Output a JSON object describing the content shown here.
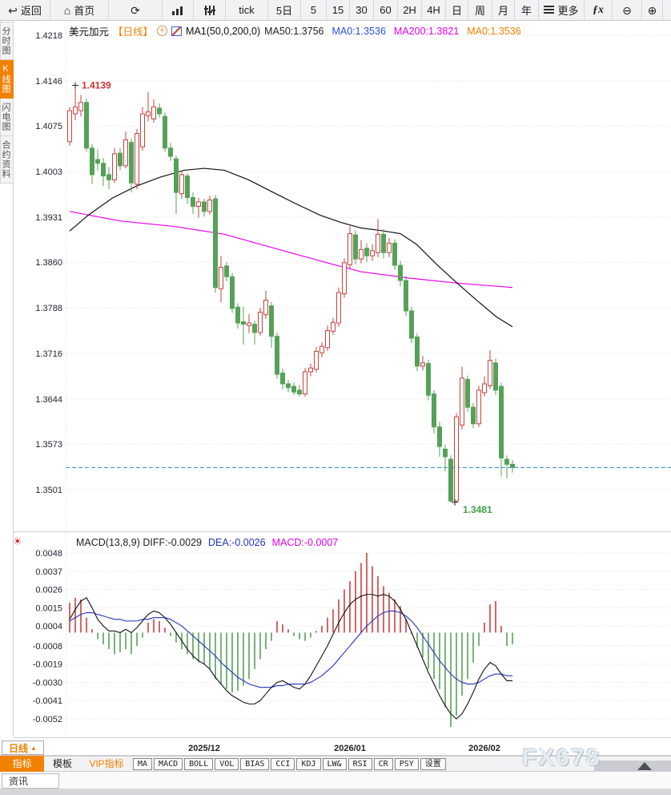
{
  "toolbar": {
    "items": [
      {
        "name": "back",
        "icon": "back-icon",
        "label": "返回"
      },
      {
        "name": "home",
        "icon": "home-icon",
        "label": "首页"
      },
      {
        "name": "refresh",
        "icon": "refresh-icon",
        "label": ""
      },
      {
        "name": "chart-type-bar",
        "icon": "bar-chart-icon",
        "label": ""
      },
      {
        "name": "chart-type-equalizer",
        "icon": "equalizer-icon",
        "label": ""
      },
      {
        "name": "interval-tick",
        "icon": "",
        "label": "tick"
      },
      {
        "name": "interval-5d",
        "icon": "",
        "label": "5日"
      },
      {
        "name": "interval-5",
        "icon": "",
        "label": "5"
      },
      {
        "name": "interval-15",
        "icon": "",
        "label": "15"
      },
      {
        "name": "interval-30",
        "icon": "",
        "label": "30"
      },
      {
        "name": "interval-60",
        "icon": "",
        "label": "60"
      },
      {
        "name": "interval-2h",
        "icon": "",
        "label": "2H"
      },
      {
        "name": "interval-4h",
        "icon": "",
        "label": "4H"
      },
      {
        "name": "interval-day",
        "icon": "",
        "label": "日"
      },
      {
        "name": "interval-week",
        "icon": "",
        "label": "周"
      },
      {
        "name": "interval-month",
        "icon": "",
        "label": "月"
      },
      {
        "name": "interval-year",
        "icon": "",
        "label": "年"
      },
      {
        "name": "more",
        "icon": "menu-icon",
        "label": "更多"
      },
      {
        "name": "formula",
        "icon": "fx-icon",
        "label": ""
      },
      {
        "name": "zoom-out",
        "icon": "zoom-out-icon",
        "label": ""
      },
      {
        "name": "zoom-in",
        "icon": "zoom-in-icon",
        "label": ""
      }
    ]
  },
  "sidebar": {
    "tabs": [
      {
        "label": "分时图",
        "active": false
      },
      {
        "label": "K线图",
        "active": true
      },
      {
        "label": "闪电图",
        "active": false
      },
      {
        "label": "合约资料",
        "active": false
      }
    ]
  },
  "chart_header": {
    "symbol": "美元加元",
    "period_tag": "【日线】",
    "ma_settings": "MA1(50,0,200,0)",
    "ma_values": [
      {
        "text": "MA50:1.3756",
        "color": "#222222"
      },
      {
        "text": "MA0:1.3536",
        "color": "#2b50d8"
      },
      {
        "text": "MA200:1.3821",
        "color": "#e800e8"
      },
      {
        "text": "MA0:1.3536",
        "color": "#f28100"
      }
    ]
  },
  "macd_header": {
    "items": [
      {
        "text": "MACD(13,8,9) DIFF:-0.0029",
        "color": "#222222"
      },
      {
        "text": "DEA:-0.0026",
        "color": "#2233bb"
      },
      {
        "text": "MACD:-0.0007",
        "color": "#e800e8"
      }
    ]
  },
  "period_selector": {
    "label": "日线",
    "arrow": "▲"
  },
  "indicator_bar": {
    "tabs": [
      {
        "label": "指标",
        "style": "active"
      },
      {
        "label": "模板",
        "style": "plain"
      },
      {
        "label": "VIP指标",
        "style": "vip"
      },
      {
        "label": "MA",
        "style": "box"
      },
      {
        "label": "MACD",
        "style": "box"
      },
      {
        "label": "BOLL",
        "style": "box"
      },
      {
        "label": "VOL",
        "style": "box"
      },
      {
        "label": "BIAS",
        "style": "box"
      },
      {
        "label": "CCI",
        "style": "box"
      },
      {
        "label": "KDJ",
        "style": "box"
      },
      {
        "label": "LW&",
        "style": "box"
      },
      {
        "label": "RSI",
        "style": "box"
      },
      {
        "label": "CR",
        "style": "box"
      },
      {
        "label": "PSY",
        "style": "box"
      },
      {
        "label": "设置",
        "style": "box"
      }
    ]
  },
  "news_bar": {
    "tab_label": "资讯"
  },
  "watermark": "FX678",
  "chart_data": {
    "type": "candlestick+macd",
    "symbol": "美元加元",
    "period": "日线",
    "price_axis": {
      "max": 1.4218,
      "min": 1.3501,
      "ticks": [
        1.4218,
        1.4146,
        1.4075,
        1.4003,
        1.3931,
        1.386,
        1.3788,
        1.3716,
        1.3644,
        1.3573,
        1.3501
      ]
    },
    "x_labels": [
      {
        "text": "2025/12",
        "index": 24
      },
      {
        "text": "2026/01",
        "index": 50
      },
      {
        "text": "2026/02",
        "index": 74
      }
    ],
    "current_price_line": 1.3536,
    "annotations": {
      "high": {
        "index": 1,
        "value": 1.4139,
        "label": "1.4139"
      },
      "low": {
        "index": 68,
        "value": 1.3481,
        "label": "1.3481"
      }
    },
    "candles": [
      [
        1.405,
        1.4105,
        1.4044,
        1.4099
      ],
      [
        1.4094,
        1.4139,
        1.4084,
        1.4105
      ],
      [
        1.4099,
        1.4124,
        1.409,
        1.4112
      ],
      [
        1.4112,
        1.4118,
        1.4034,
        1.404
      ],
      [
        1.404,
        1.4046,
        1.3983,
        1.3998
      ],
      [
        1.4022,
        1.4038,
        1.4005,
        1.4016
      ],
      [
        1.4016,
        1.4024,
        1.398,
        1.3996
      ],
      [
        1.3998,
        1.401,
        1.3975,
        1.399
      ],
      [
        1.399,
        1.404,
        1.3985,
        1.4031
      ],
      [
        1.4032,
        1.404,
        1.4005,
        1.4012
      ],
      [
        1.4012,
        1.4066,
        1.4008,
        1.4053
      ],
      [
        1.4049,
        1.4055,
        1.397,
        1.3985
      ],
      [
        1.3983,
        1.407,
        1.3975,
        1.4063
      ],
      [
        1.4042,
        1.4105,
        1.4036,
        1.4094
      ],
      [
        1.4091,
        1.4128,
        1.4082,
        1.4097
      ],
      [
        1.4086,
        1.4117,
        1.408,
        1.4105
      ],
      [
        1.4103,
        1.411,
        1.4088,
        1.4094
      ],
      [
        1.409,
        1.4096,
        1.4034,
        1.404
      ],
      [
        1.404,
        1.4048,
        1.402,
        1.4027
      ],
      [
        1.4023,
        1.4028,
        1.3936,
        1.397
      ],
      [
        1.3968,
        1.4005,
        1.396,
        1.3998
      ],
      [
        1.3996,
        1.4,
        1.3952,
        1.3962
      ],
      [
        1.3962,
        1.397,
        1.3936,
        1.3948
      ],
      [
        1.3948,
        1.3962,
        1.393,
        1.3955
      ],
      [
        1.3955,
        1.396,
        1.3932,
        1.394
      ],
      [
        1.394,
        1.3965,
        1.3935,
        1.3958
      ],
      [
        1.396,
        1.3966,
        1.3812,
        1.382
      ],
      [
        1.3818,
        1.387,
        1.3797,
        1.3852
      ],
      [
        1.3854,
        1.386,
        1.383,
        1.3837
      ],
      [
        1.3837,
        1.3843,
        1.378,
        1.3787
      ],
      [
        1.3789,
        1.3795,
        1.3755,
        1.3764
      ],
      [
        1.3766,
        1.379,
        1.373,
        1.3762
      ],
      [
        1.376,
        1.3778,
        1.3748,
        1.3764
      ],
      [
        1.3762,
        1.3768,
        1.373,
        1.3749
      ],
      [
        1.3749,
        1.3788,
        1.3744,
        1.3781
      ],
      [
        1.3777,
        1.3815,
        1.377,
        1.38
      ],
      [
        1.3791,
        1.3797,
        1.3725,
        1.3743
      ],
      [
        1.3743,
        1.3749,
        1.3676,
        1.3683
      ],
      [
        1.3685,
        1.3692,
        1.366,
        1.3668
      ],
      [
        1.3668,
        1.3674,
        1.3655,
        1.3662
      ],
      [
        1.3664,
        1.367,
        1.365,
        1.3655
      ],
      [
        1.3658,
        1.3666,
        1.3648,
        1.3652
      ],
      [
        1.3652,
        1.3693,
        1.3648,
        1.3687
      ],
      [
        1.3687,
        1.37,
        1.368,
        1.3693
      ],
      [
        1.3691,
        1.3726,
        1.3686,
        1.3719
      ],
      [
        1.3717,
        1.3734,
        1.371,
        1.3727
      ],
      [
        1.3725,
        1.376,
        1.372,
        1.3752
      ],
      [
        1.3751,
        1.3772,
        1.3745,
        1.3765
      ],
      [
        1.3764,
        1.382,
        1.3758,
        1.3812
      ],
      [
        1.381,
        1.3866,
        1.3804,
        1.3859
      ],
      [
        1.3856,
        1.3917,
        1.385,
        1.3905
      ],
      [
        1.3903,
        1.391,
        1.3856,
        1.3865
      ],
      [
        1.3865,
        1.3895,
        1.3858,
        1.388
      ],
      [
        1.3882,
        1.389,
        1.386,
        1.387
      ],
      [
        1.387,
        1.3888,
        1.3862,
        1.3878
      ],
      [
        1.3875,
        1.3928,
        1.3868,
        1.3904
      ],
      [
        1.3904,
        1.3912,
        1.3866,
        1.3875
      ],
      [
        1.3875,
        1.3898,
        1.3868,
        1.389
      ],
      [
        1.389,
        1.3896,
        1.3848,
        1.3855
      ],
      [
        1.3855,
        1.3862,
        1.3822,
        1.3831
      ],
      [
        1.3831,
        1.3838,
        1.3775,
        1.3783
      ],
      [
        1.3783,
        1.379,
        1.3732,
        1.374
      ],
      [
        1.3742,
        1.3748,
        1.3688,
        1.3696
      ],
      [
        1.3696,
        1.3712,
        1.3689,
        1.3701
      ],
      [
        1.37,
        1.3706,
        1.3642,
        1.365
      ],
      [
        1.3652,
        1.3658,
        1.359,
        1.36
      ],
      [
        1.36,
        1.3608,
        1.3553,
        1.3569
      ],
      [
        1.3565,
        1.3572,
        1.353,
        1.3553
      ],
      [
        1.3549,
        1.3555,
        1.3481,
        1.3483
      ],
      [
        1.3483,
        1.3622,
        1.3481,
        1.3616
      ],
      [
        1.3603,
        1.3695,
        1.3596,
        1.3677
      ],
      [
        1.3675,
        1.3681,
        1.3624,
        1.3631
      ],
      [
        1.3631,
        1.3638,
        1.3598,
        1.3605
      ],
      [
        1.3605,
        1.3665,
        1.36,
        1.3658
      ],
      [
        1.3654,
        1.368,
        1.3648,
        1.3668
      ],
      [
        1.3665,
        1.3721,
        1.366,
        1.3705
      ],
      [
        1.3701,
        1.3708,
        1.365,
        1.3658
      ],
      [
        1.3664,
        1.367,
        1.3522,
        1.3551
      ],
      [
        1.3549,
        1.3555,
        1.3519,
        1.3541
      ],
      [
        1.3541,
        1.3548,
        1.3528,
        1.3536
      ]
    ],
    "ma50": {
      "points": [
        [
          0,
          1.3909
        ],
        [
          3.3,
          1.3934
        ],
        [
          7.6,
          1.3961
        ],
        [
          11.9,
          1.398
        ],
        [
          16.1,
          1.3994
        ],
        [
          20.4,
          1.4005
        ],
        [
          24,
          1.4008
        ],
        [
          27.6,
          1.4005
        ],
        [
          31.9,
          1.399
        ],
        [
          36.1,
          1.3971
        ],
        [
          40.4,
          1.3952
        ],
        [
          44.7,
          1.3934
        ],
        [
          48.3,
          1.3923
        ],
        [
          51.9,
          1.3914
        ],
        [
          55.4,
          1.391
        ],
        [
          59,
          1.3905
        ],
        [
          61.9,
          1.3888
        ],
        [
          65.4,
          1.3857
        ],
        [
          69,
          1.3828
        ],
        [
          72.6,
          1.38
        ],
        [
          76.1,
          1.3774
        ],
        [
          79,
          1.3758
        ]
      ]
    },
    "ma200": {
      "points": [
        [
          0,
          1.394
        ],
        [
          9,
          1.3925
        ],
        [
          19,
          1.3916
        ],
        [
          27.6,
          1.3904
        ],
        [
          36.1,
          1.3883
        ],
        [
          44.7,
          1.3862
        ],
        [
          51.9,
          1.3845
        ],
        [
          60.4,
          1.3835
        ],
        [
          69,
          1.3827
        ],
        [
          79,
          1.382
        ]
      ]
    },
    "macd": {
      "axis_max": 0.0048,
      "axis_min": -0.0052,
      "ticks": [
        0.0048,
        0.0037,
        0.0026,
        0.0015,
        0.0004,
        -0.0008,
        -0.0019,
        -0.003,
        -0.0041,
        -0.0052
      ],
      "histogram": [
        0.0018,
        0.0021,
        0.002,
        0.0009,
        0.0002,
        -0.0004,
        -0.0007,
        -0.001,
        -0.0013,
        -0.0012,
        -0.001,
        -0.0013,
        -0.0008,
        -0.0003,
        0.0006,
        0.0008,
        0.0007,
        0.0003,
        -0.0002,
        -0.0006,
        -0.001,
        -0.0013,
        -0.0016,
        -0.0018,
        -0.0019,
        -0.0022,
        -0.0028,
        -0.0031,
        -0.0034,
        -0.0036,
        -0.0035,
        -0.0032,
        -0.0028,
        -0.0022,
        -0.0016,
        -0.001,
        -0.0005,
        0.0007,
        0.0005,
        0.0002,
        -0.0002,
        -0.0004,
        -0.0005,
        -0.0003,
        0.0001,
        0.0004,
        0.0009,
        0.0014,
        0.002,
        0.0026,
        0.0031,
        0.0037,
        0.0042,
        0.0048,
        0.004,
        0.0034,
        0.0028,
        0.0024,
        0.002,
        0.0016,
        0.0008,
        -0.0001,
        -0.0009,
        -0.0015,
        -0.0022,
        -0.0028,
        -0.0034,
        -0.0045,
        -0.0057,
        -0.005,
        -0.0038,
        -0.0028,
        -0.0018,
        -0.0008,
        0.0006,
        0.0017,
        0.0019,
        0.0004,
        -0.0008,
        -0.0007
      ],
      "diff": [
        0.0008,
        0.0014,
        0.0019,
        0.0021,
        0.0015,
        0.0008,
        0.0004,
        0.0001,
        0.0001,
        0.0,
        0.0002,
        0.0,
        0.0003,
        0.0007,
        0.0011,
        0.0013,
        0.0012,
        0.0009,
        0.0005,
        0.0,
        -0.0005,
        -0.001,
        -0.0014,
        -0.0017,
        -0.0019,
        -0.0022,
        -0.0027,
        -0.0031,
        -0.0035,
        -0.0038,
        -0.004,
        -0.0042,
        -0.0043,
        -0.0043,
        -0.0041,
        -0.0037,
        -0.0033,
        -0.003,
        -0.0029,
        -0.0031,
        -0.0033,
        -0.0034,
        -0.0031,
        -0.0026,
        -0.002,
        -0.0014,
        -0.0008,
        -0.0001,
        0.0006,
        0.0012,
        0.0017,
        0.002,
        0.0022,
        0.0023,
        0.0023,
        0.0022,
        0.0023,
        0.0022,
        0.0019,
        0.0014,
        0.0008,
        0.0,
        -0.0008,
        -0.0016,
        -0.0024,
        -0.0031,
        -0.0038,
        -0.0044,
        -0.0049,
        -0.0052,
        -0.0049,
        -0.0043,
        -0.0036,
        -0.0028,
        -0.0022,
        -0.0018,
        -0.002,
        -0.0025,
        -0.0029,
        -0.0029
      ],
      "dea": [
        0.0007,
        0.0009,
        0.0011,
        0.0012,
        0.0012,
        0.0011,
        0.001,
        0.0009,
        0.0008,
        0.0008,
        0.0007,
        0.0007,
        0.0007,
        0.0008,
        0.0008,
        0.0009,
        0.0009,
        0.0009,
        0.0008,
        0.0006,
        0.0004,
        0.0001,
        -0.0002,
        -0.0005,
        -0.0008,
        -0.0011,
        -0.0014,
        -0.0018,
        -0.0021,
        -0.0024,
        -0.0027,
        -0.0029,
        -0.0031,
        -0.0032,
        -0.0033,
        -0.0033,
        -0.0033,
        -0.0032,
        -0.0032,
        -0.0031,
        -0.0031,
        -0.0031,
        -0.0031,
        -0.003,
        -0.0028,
        -0.0026,
        -0.0023,
        -0.002,
        -0.0016,
        -0.0012,
        -0.0008,
        -0.0004,
        0.0,
        0.0004,
        0.0007,
        0.001,
        0.0012,
        0.0013,
        0.0013,
        0.0012,
        0.001,
        0.0007,
        0.0003,
        -0.0002,
        -0.0007,
        -0.0012,
        -0.0017,
        -0.0021,
        -0.0025,
        -0.0028,
        -0.003,
        -0.0031,
        -0.0031,
        -0.003,
        -0.0028,
        -0.0026,
        -0.0025,
        -0.0025,
        -0.0026,
        -0.0026
      ]
    },
    "colors": {
      "up": "#c9413f",
      "down": "#55a158",
      "ma50": "#111111",
      "ma200": "#e800e8",
      "diff": "#111111",
      "dea": "#2233bb",
      "current_line": "#2285dd",
      "accent": "#f28100"
    }
  }
}
